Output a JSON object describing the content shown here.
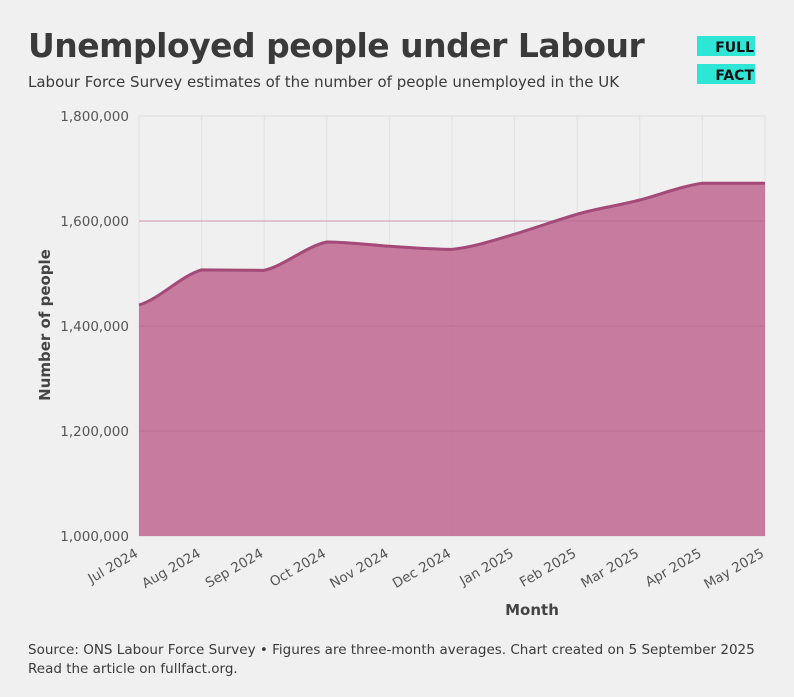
{
  "header": {
    "title": "Unemployed people under Labour",
    "subtitle": "Labour Force Survey estimates of the number of people unemployed in the UK"
  },
  "logo": {
    "line1": "FULL",
    "line2": "FACT"
  },
  "footer": {
    "source": "Source: ONS Labour Force Survey • Figures are three-month averages. Chart created on 5 September 2025",
    "link_text": "Read the article on fullfact.org."
  },
  "colors": {
    "area_fill": "#c4779c",
    "area_line": "#a34a78",
    "logo_accent": "#2ee6d6",
    "background": "#f0f0f0"
  },
  "chart_data": {
    "type": "area",
    "categories": [
      "Jul 2024",
      "Aug 2024",
      "Sep 2024",
      "Oct 2024",
      "Nov 2024",
      "Dec 2024",
      "Jan 2025",
      "Feb 2025",
      "Mar 2025",
      "Apr 2025",
      "May 2025"
    ],
    "series": [
      {
        "values": [
          1440000,
          1507000,
          1506000,
          1560000,
          1552000,
          1546000,
          1575000,
          1613000,
          1640000,
          1672000,
          1672000
        ]
      }
    ],
    "xlabel": "Month",
    "ylabel": "Number of people",
    "ylim": [
      1000000,
      1800000
    ],
    "yticks": [
      "1,000,000",
      "1,200,000",
      "1,400,000",
      "1,600,000",
      "1,800,000"
    ],
    "ytick_values": [
      1000000,
      1200000,
      1400000,
      1600000,
      1800000
    ],
    "grid": true,
    "legend": "none"
  }
}
